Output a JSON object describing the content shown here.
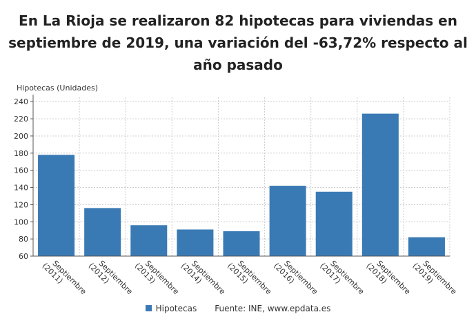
{
  "header": {
    "title": "En La Rioja se realizaron 82 hipotecas para viviendas en septiembre de 2019, una variación del -63,72% respecto al año pasado"
  },
  "legend": {
    "series_label": "Hipotecas",
    "source": "Fuente: INE, www.epdata.es"
  },
  "colors": {
    "bar": "#3a7ab4",
    "grid": "#cccccc",
    "axis": "#555555"
  },
  "chart_data": {
    "type": "bar",
    "title": "En La Rioja se realizaron 82 hipotecas para viviendas en septiembre de 2019, una variación del -63,72% respecto al año pasado",
    "ylabel": "Hipotecas (Unidades)",
    "xlabel": "",
    "categories": [
      "Septiembre (2011)",
      "Septiembre (2012)",
      "Septiembre (2013)",
      "Septiembre (2014)",
      "Septiembre (2015)",
      "Septiembre (2016)",
      "Septiembre (2017)",
      "Septiembre (2018)",
      "Septiembre (2019)"
    ],
    "series": [
      {
        "name": "Hipotecas",
        "values": [
          178,
          116,
          96,
          91,
          89,
          142,
          135,
          226,
          82
        ]
      }
    ],
    "ylim": [
      60,
      245
    ],
    "yticks": [
      60,
      80,
      100,
      120,
      140,
      160,
      180,
      200,
      220,
      240
    ],
    "grid": true,
    "legend_position": "bottom"
  }
}
